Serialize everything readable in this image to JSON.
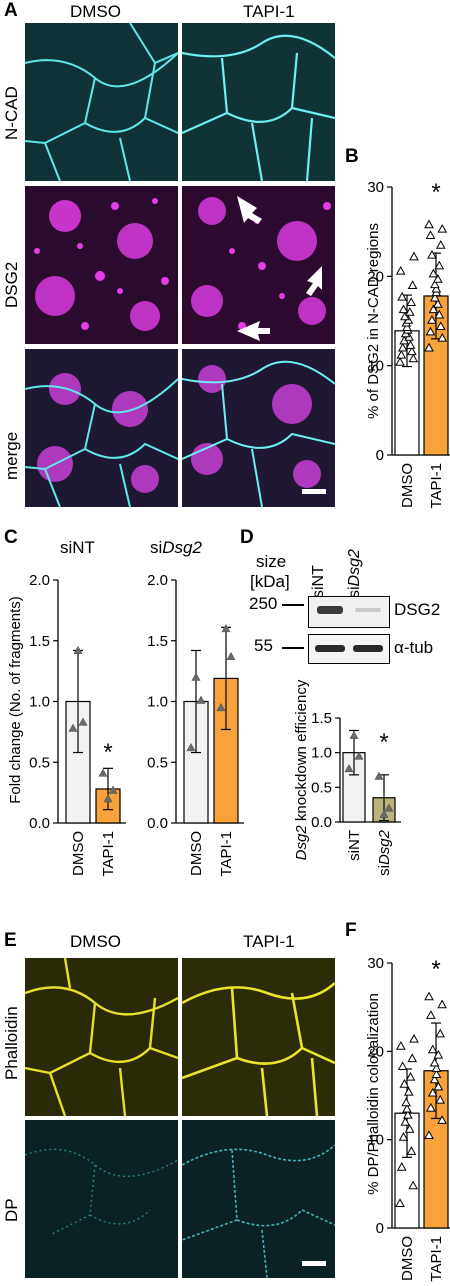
{
  "panelA": {
    "letter": "A",
    "col_headers": [
      "DMSO",
      "TAPI-1"
    ],
    "row_labels": [
      "N-CAD",
      "DSG2",
      "merge"
    ]
  },
  "panelB": {
    "letter": "B",
    "star": "*"
  },
  "panelC": {
    "letter": "C",
    "titles": [
      "siNT",
      "si",
      "Dsg2"
    ],
    "star": "*"
  },
  "panelD": {
    "letter": "D",
    "size_label": "size",
    "kda_label": "[kDa]",
    "lanes": [
      "siNT",
      "si",
      "Dsg2"
    ],
    "markers": [
      "250",
      "55"
    ],
    "bands": [
      "DSG2",
      "α-tub"
    ],
    "star": "*"
  },
  "panelE": {
    "letter": "E",
    "col_headers": [
      "DMSO",
      "TAPI-1"
    ],
    "row_labels": [
      "Phalloidin",
      "DP"
    ]
  },
  "panelF": {
    "letter": "F",
    "star": "*"
  },
  "chart_data": [
    {
      "id": "B",
      "type": "bar",
      "ylabel": "% of DSG2 in N-CAD regions",
      "categories": [
        "DMSO",
        "TAPI-1"
      ],
      "values": [
        13.9,
        17.8
      ],
      "errors": [
        4.0,
        4.8
      ],
      "ylim": [
        0,
        30
      ],
      "yticks": [
        0,
        10,
        20,
        30
      ],
      "colors": [
        "#ffffff",
        "#f7a23b"
      ],
      "points": [
        [
          10.4,
          10.8,
          11.2,
          11.6,
          12.0,
          12.3,
          12.8,
          13.2,
          13.6,
          14.0,
          14.3,
          14.8,
          15.1,
          15.5,
          16.0,
          16.3,
          17.1,
          17.7,
          19.0,
          20.6,
          22.2
        ],
        [
          12.0,
          13.1,
          13.8,
          14.4,
          15.1,
          15.7,
          16.3,
          16.9,
          17.6,
          18.2,
          18.6,
          19.1,
          19.7,
          20.3,
          21.2,
          22.4,
          23.5,
          24.6,
          25.3,
          25.8
        ]
      ]
    },
    {
      "id": "C-siNT",
      "type": "bar",
      "ylabel": "Fold change (No. of fragments)",
      "categories": [
        "DMSO",
        "TAPI-1"
      ],
      "values": [
        1.0,
        0.28
      ],
      "errors": [
        0.42,
        0.17
      ],
      "ylim": [
        0,
        2.0
      ],
      "yticks": [
        "0.0",
        "0.5",
        "1.0",
        "1.5",
        "2.0"
      ],
      "colors": [
        "#f2f2f2",
        "#f7a23b"
      ],
      "points": [
        [
          0.78,
          1.42,
          0.83
        ],
        [
          0.41,
          0.2,
          0.27
        ]
      ]
    },
    {
      "id": "C-siDsg2",
      "type": "bar",
      "categories": [
        "DMSO",
        "TAPI-1"
      ],
      "values": [
        1.0,
        1.19
      ],
      "errors": [
        0.42,
        0.42
      ],
      "ylim": [
        0,
        2.0
      ],
      "yticks": [
        "0.0",
        "0.5",
        "1.0",
        "1.5",
        "2.0"
      ],
      "colors": [
        "#f2f2f2",
        "#f7a23b"
      ],
      "points": [
        [
          0.62,
          1.2,
          1.01
        ],
        [
          0.95,
          1.6,
          1.37
        ]
      ]
    },
    {
      "id": "D",
      "type": "bar",
      "ylabel": "Dsg2 knockdown efficiency",
      "categories": [
        "siNT",
        "siDsg2"
      ],
      "values": [
        1.0,
        0.35
      ],
      "errors": [
        0.32,
        0.33
      ],
      "ylim": [
        0,
        1.5
      ],
      "yticks": [
        "0.0",
        "0.5",
        "1.0",
        "1.5"
      ],
      "colors": [
        "#f2f2f2",
        "#bab27c"
      ],
      "points": [
        [
          0.77,
          1.25,
          0.95
        ],
        [
          0.66,
          0.11,
          0.2
        ]
      ]
    },
    {
      "id": "F",
      "type": "bar",
      "ylabel": "% DP/Phalloidin colocalization",
      "categories": [
        "DMSO",
        "TAPI-1"
      ],
      "values": [
        13.0,
        17.8
      ],
      "errors": [
        5.0,
        5.4
      ],
      "ylim": [
        0,
        30
      ],
      "yticks": [
        0,
        10,
        20,
        30
      ],
      "colors": [
        "#ffffff",
        "#f7a23b"
      ],
      "points": [
        [
          2.8,
          4.8,
          6.9,
          8.7,
          10.3,
          11.2,
          12.0,
          12.8,
          13.5,
          14.2,
          15.4,
          16.3,
          17.1,
          18.3,
          19.2,
          20.6,
          21.4
        ],
        [
          10.5,
          12.2,
          13.6,
          14.5,
          15.3,
          16.0,
          16.8,
          17.4,
          18.1,
          18.7,
          19.6,
          20.2,
          22.0,
          24.1,
          25.3,
          26.2
        ]
      ]
    }
  ]
}
